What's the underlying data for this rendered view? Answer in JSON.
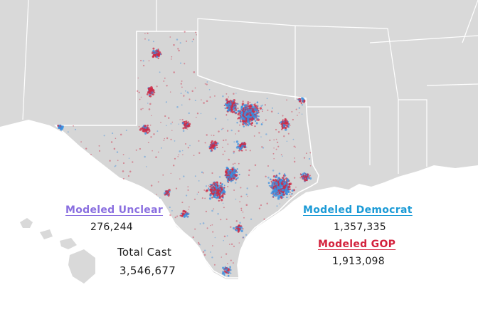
{
  "legend": {
    "unclear": {
      "label": "Modeled Unclear",
      "value": "276,244",
      "color": "#8a6fe0"
    },
    "democrat": {
      "label": "Modeled Democrat",
      "value": "1,357,335",
      "color": "#1a9ad6"
    },
    "gop": {
      "label": "Modeled GOP",
      "value": "1,913,098",
      "color": "#d3213c"
    },
    "total": {
      "label": "Total Cast",
      "value": "3,546,677"
    }
  },
  "colors": {
    "land": "#d9d9d9",
    "border": "#ffffff",
    "water": "#ffffff",
    "dem_dot": "#3a8fe0",
    "gop_dot": "#cc2a45"
  }
}
